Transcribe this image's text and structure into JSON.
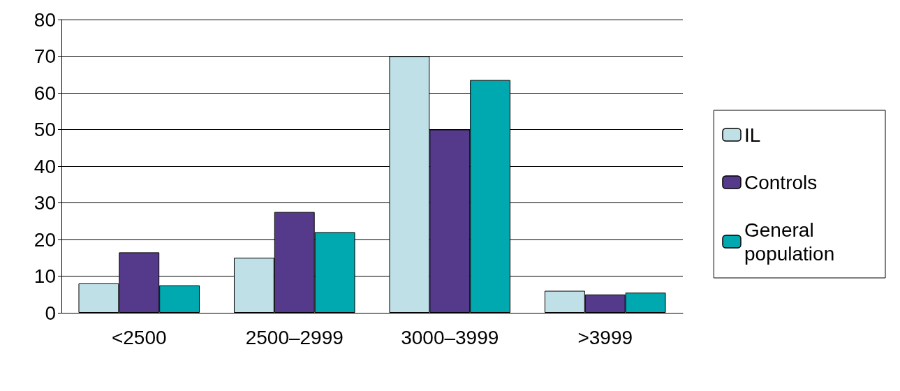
{
  "chart_data": {
    "type": "bar",
    "categories": [
      "<2500",
      "2500–2999",
      "3000–3999",
      ">3999"
    ],
    "series": [
      {
        "name": "IL",
        "color": "#c0e0e8",
        "values": [
          8,
          15,
          70,
          6
        ]
      },
      {
        "name": "Controls",
        "color": "#553a8c",
        "values": [
          16.5,
          27.5,
          50,
          5
        ]
      },
      {
        "name": "General population",
        "color": "#00a8b0",
        "values": [
          7.5,
          22,
          63.5,
          5.5
        ]
      }
    ],
    "ylim": [
      0,
      80
    ],
    "yticks": [
      0,
      10,
      20,
      30,
      40,
      50,
      60,
      70,
      80
    ],
    "grid": "y",
    "legend": "right"
  }
}
